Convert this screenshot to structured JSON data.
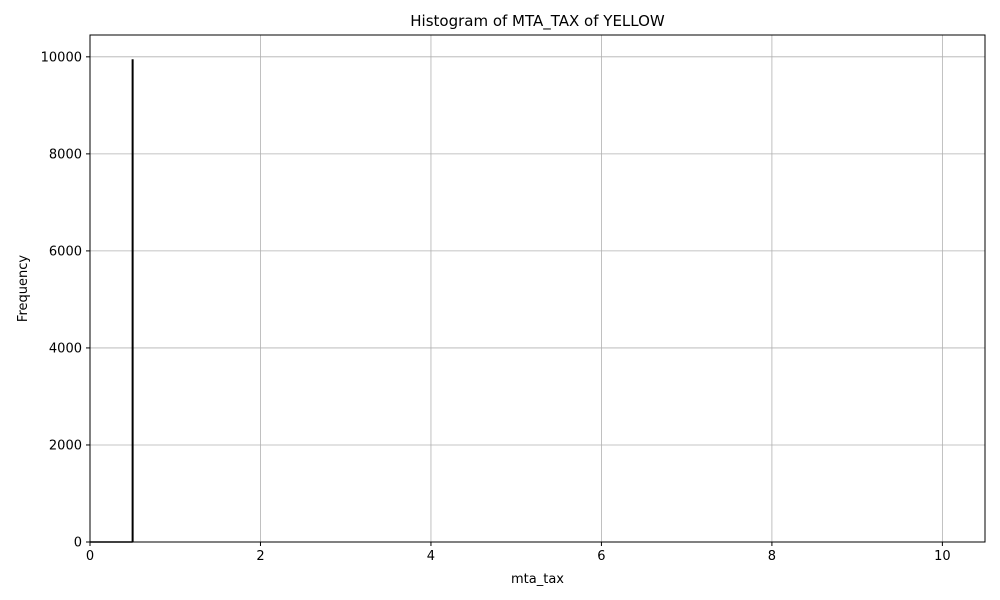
{
  "chart_data": {
    "type": "bar",
    "title": "Histogram of MTA_TAX of YELLOW",
    "xlabel": "mta_tax",
    "ylabel": "Frequency",
    "xlim": [
      0,
      10.5
    ],
    "ylim": [
      0,
      10450
    ],
    "xticks": [
      0,
      2,
      4,
      6,
      8,
      10
    ],
    "yticks": [
      0,
      2000,
      4000,
      6000,
      8000,
      10000
    ],
    "grid": true,
    "bar_color": "#000000",
    "bin_width": 0.02,
    "bins": [
      {
        "x": 0.5,
        "count": 9950
      }
    ]
  }
}
